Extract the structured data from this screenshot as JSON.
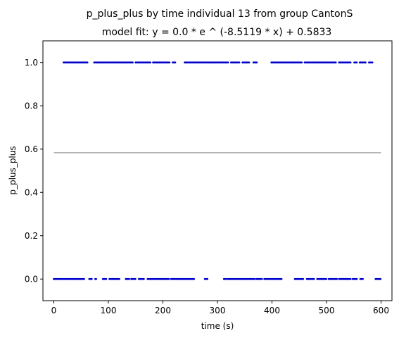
{
  "chart_data": {
    "type": "scatter",
    "title": "p_plus_plus by time individual 13 from group CantonS",
    "subtitle": "model fit: y = 0.0 * e ^ (-8.5119 * x) + 0.5833",
    "xlabel": "time (s)",
    "ylabel": "p_plus_plus",
    "xlim": [
      -20,
      620
    ],
    "ylim": [
      -0.1,
      1.1
    ],
    "x_ticks": [
      0,
      100,
      200,
      300,
      400,
      500,
      600
    ],
    "x_tick_labels": [
      "0",
      "100",
      "200",
      "300",
      "400",
      "500",
      "600"
    ],
    "y_ticks": [
      0.0,
      0.2,
      0.4,
      0.6,
      0.8,
      1.0
    ],
    "y_tick_labels": [
      "0.0",
      "0.2",
      "0.4",
      "0.6",
      "0.8",
      "1.0"
    ],
    "grid": false,
    "colors": {
      "points": "#0000cc",
      "fit": "#a9a9a9"
    },
    "series": [
      {
        "kind": "points",
        "y": 1.0,
        "segments": [
          [
            18,
            62
          ],
          [
            74,
            145
          ],
          [
            150,
            178
          ],
          [
            182,
            212
          ],
          [
            218,
            223
          ],
          [
            240,
            320
          ],
          [
            325,
            340
          ],
          [
            346,
            358
          ],
          [
            366,
            373
          ],
          [
            399,
            455
          ],
          [
            460,
            518
          ],
          [
            523,
            545
          ],
          [
            551,
            556
          ],
          [
            561,
            572
          ],
          [
            578,
            584
          ]
        ]
      },
      {
        "kind": "points",
        "y": 0.0,
        "segments": [
          [
            0,
            56
          ],
          [
            65,
            70
          ],
          [
            76,
            78
          ],
          [
            90,
            97
          ],
          [
            102,
            120
          ],
          [
            132,
            138
          ],
          [
            142,
            150
          ],
          [
            156,
            165
          ],
          [
            172,
            212
          ],
          [
            215,
            258
          ],
          [
            277,
            282
          ],
          [
            312,
            316
          ],
          [
            318,
            368
          ],
          [
            371,
            382
          ],
          [
            386,
            418
          ],
          [
            442,
            458
          ],
          [
            464,
            472
          ],
          [
            474,
            478
          ],
          [
            483,
            500
          ],
          [
            504,
            519
          ],
          [
            523,
            545
          ],
          [
            548,
            556
          ],
          [
            562,
            567
          ],
          [
            590,
            600
          ]
        ]
      },
      {
        "kind": "fit",
        "x": [
          0,
          600
        ],
        "y": [
          0.5833,
          0.5833
        ]
      }
    ]
  }
}
